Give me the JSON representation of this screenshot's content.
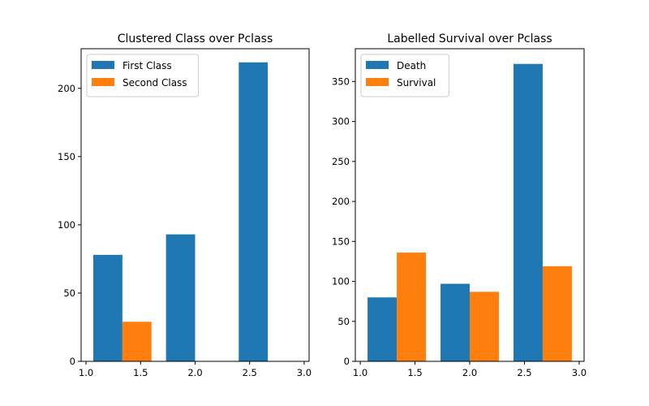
{
  "chart_data": [
    {
      "type": "bar",
      "title": "Clustered Class over Pclass",
      "xlabel": "",
      "ylabel": "",
      "xlim": [
        0.955,
        3.045
      ],
      "ylim": [
        0,
        229
      ],
      "xticks": [
        "1.0",
        "1.5",
        "2.0",
        "2.5",
        "3.0"
      ],
      "xtick_values": [
        1.0,
        1.5,
        2.0,
        2.5,
        3.0
      ],
      "yticks": [
        "0",
        "50",
        "100",
        "150",
        "200"
      ],
      "ytick_values": [
        0,
        50,
        100,
        150,
        200
      ],
      "grid": false,
      "legend": "top-left",
      "bins": [
        [
          1.0,
          1.6667
        ],
        [
          1.6667,
          2.3333
        ],
        [
          2.3333,
          3.0
        ]
      ],
      "series": [
        {
          "name": "First Class",
          "color": "#1f77b4",
          "values": [
            78,
            93,
            219
          ]
        },
        {
          "name": "Second Class",
          "color": "#ff7f0e",
          "values": [
            29,
            0,
            0
          ]
        }
      ]
    },
    {
      "type": "bar",
      "title": "Labelled Survival over Pclass",
      "xlabel": "",
      "ylabel": "",
      "xlim": [
        0.955,
        3.045
      ],
      "ylim": [
        0,
        391
      ],
      "xticks": [
        "1.0",
        "1.5",
        "2.0",
        "2.5",
        "3.0"
      ],
      "xtick_values": [
        1.0,
        1.5,
        2.0,
        2.5,
        3.0
      ],
      "yticks": [
        "0",
        "50",
        "100",
        "150",
        "200",
        "250",
        "300",
        "350"
      ],
      "ytick_values": [
        0,
        50,
        100,
        150,
        200,
        250,
        300,
        350
      ],
      "grid": false,
      "legend": "top-left",
      "bins": [
        [
          1.0,
          1.6667
        ],
        [
          1.6667,
          2.3333
        ],
        [
          2.3333,
          3.0
        ]
      ],
      "series": [
        {
          "name": "Death",
          "color": "#1f77b4",
          "values": [
            80,
            97,
            372
          ]
        },
        {
          "name": "Survival",
          "color": "#ff7f0e",
          "values": [
            136,
            87,
            119
          ]
        }
      ]
    }
  ]
}
